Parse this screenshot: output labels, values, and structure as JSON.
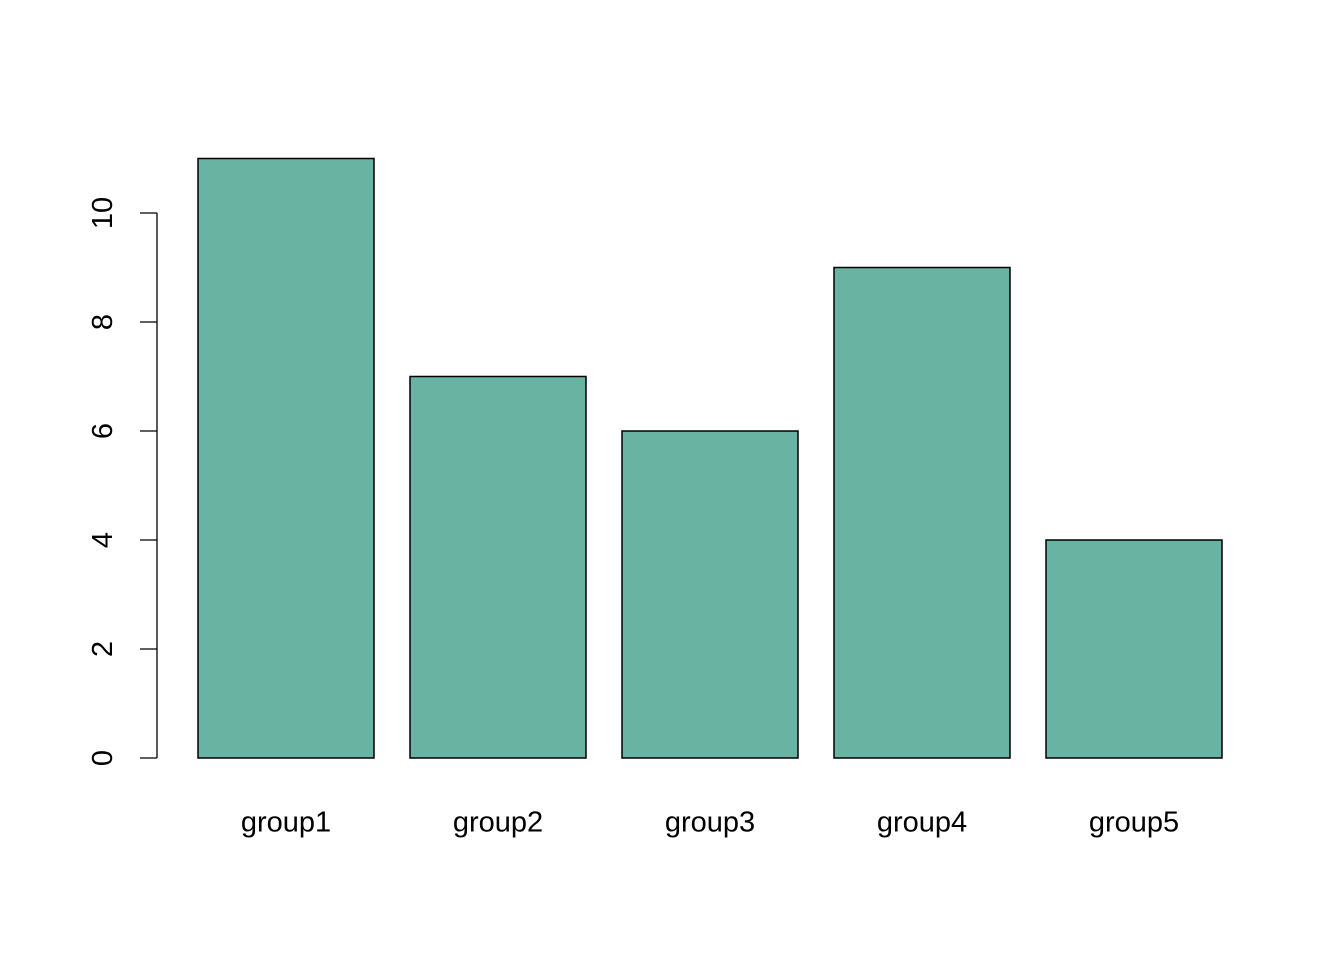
{
  "chart_data": {
    "type": "bar",
    "categories": [
      "group1",
      "group2",
      "group3",
      "group4",
      "group5"
    ],
    "values": [
      11,
      7,
      6,
      9,
      4
    ],
    "title": "",
    "xlabel": "",
    "ylabel": "",
    "ylim": [
      0,
      10
    ],
    "yticks": [
      0,
      2,
      4,
      6,
      8,
      10
    ],
    "grid": false,
    "legend": "none",
    "bar_color": "#69b3a2",
    "bar_border_color": "#000000"
  }
}
